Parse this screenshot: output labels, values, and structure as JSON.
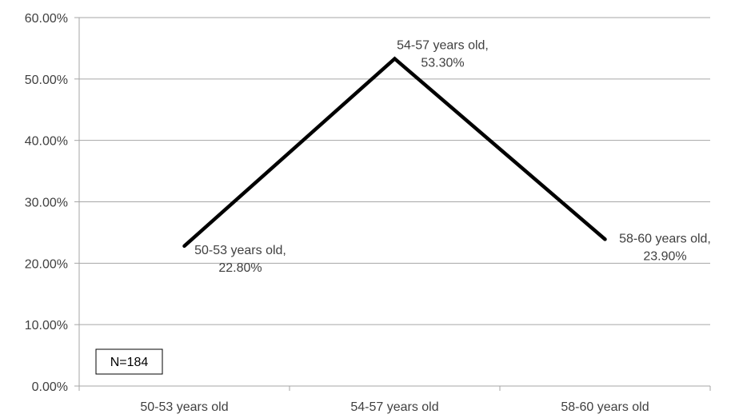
{
  "chart_data": {
    "type": "line",
    "categories": [
      "50-53 years old",
      "54-57 years old",
      "58-60 years old"
    ],
    "values": [
      22.8,
      53.3,
      23.9
    ],
    "data_labels": [
      [
        "50-53 years old,",
        "22.80%"
      ],
      [
        "54-57 years old,",
        "53.30%"
      ],
      [
        "58-60 years old,",
        "23.90%"
      ]
    ],
    "y_ticks": [
      "0.00%",
      "10.00%",
      "20.00%",
      "30.00%",
      "40.00%",
      "50.00%",
      "60.00%"
    ],
    "ylim": [
      0,
      60
    ],
    "grid": true,
    "legend": "none",
    "line_color": "#000000",
    "grid_color": "#a6a6a6",
    "annotation": "N=184"
  }
}
